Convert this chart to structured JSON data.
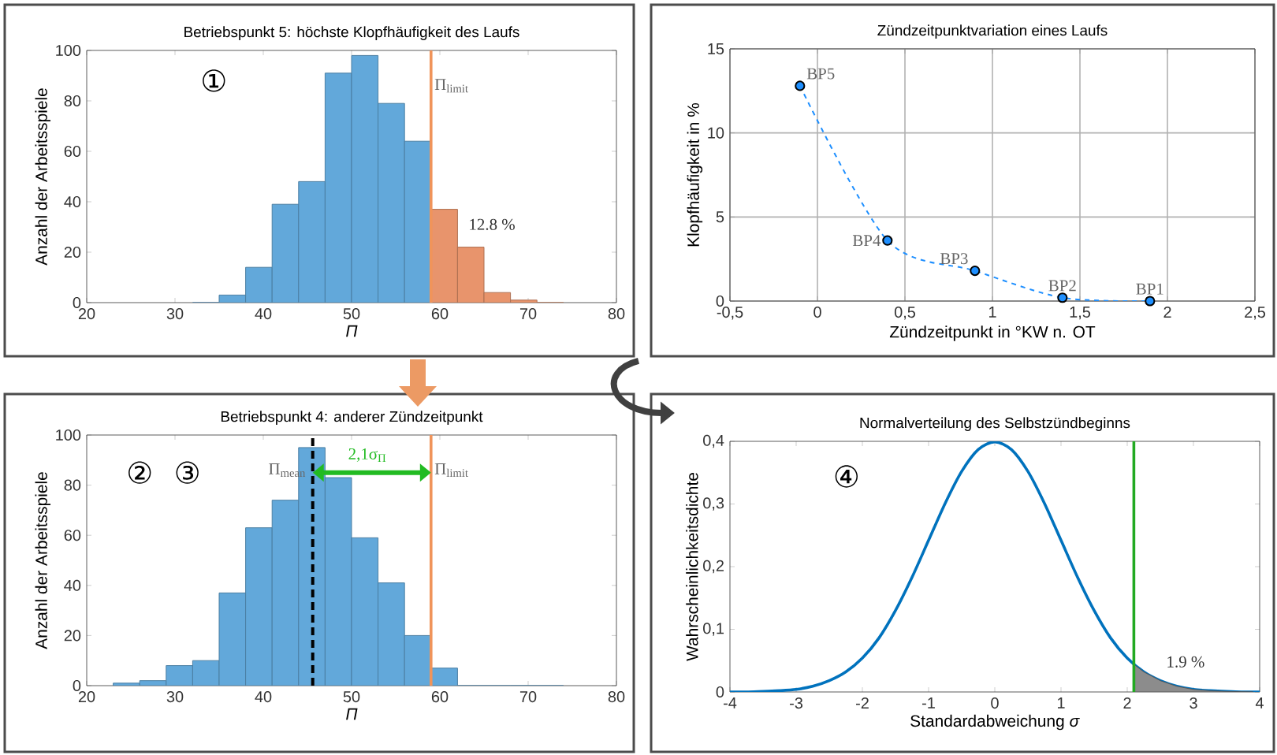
{
  "chart_data": [
    {
      "type": "histogram",
      "title": "Betriebspunkt 5: höchste Klopfhäufigkeit des Laufs",
      "xlabel": "*Π*",
      "ylabel": "Anzahl der Arbeitsspiele",
      "bins": [
        32,
        35,
        38,
        41,
        44,
        47,
        50,
        53,
        56,
        59,
        62,
        65,
        68,
        71,
        74
      ],
      "values": [
        0,
        3,
        14,
        39,
        48,
        91,
        98,
        79,
        64,
        37,
        22,
        4,
        1,
        0
      ],
      "colors": [
        "#62a8da",
        "#62a8da",
        "#62a8da",
        "#62a8da",
        "#62a8da",
        "#62a8da",
        "#62a8da",
        "#62a8da",
        "#62a8da",
        "#e8946c",
        "#e8946c",
        "#e8946c",
        "#e8946c",
        "#e8946c"
      ],
      "xlim": [
        20,
        80
      ],
      "xticks": [
        20,
        30,
        40,
        50,
        60,
        70,
        80
      ],
      "ylim": [
        0,
        100
      ],
      "yticks": [
        0,
        20,
        40,
        60,
        80,
        100
      ],
      "ref_lines": [
        {
          "axis": "x",
          "value": 59,
          "label": "Π$_{limit}$",
          "color": "#f0945a"
        }
      ],
      "annotations": [
        "①",
        "12.8 %"
      ]
    },
    {
      "type": "line",
      "title": "Zündzeitpunktvariation eines Laufs",
      "xlabel": "Zündzeitpunkt in °KW n. OT",
      "ylabel": "Klopfhäufigkeit in %",
      "series": [
        {
          "color": "#1e8fff",
          "x": [
            -0.1,
            0.4,
            0.9,
            1.4,
            1.9
          ],
          "values": [
            12.8,
            3.6,
            1.8,
            0.2,
            0.0
          ]
        }
      ],
      "marker": "circle",
      "line_style": "dashed",
      "grid": true,
      "xlim": [
        -0.5,
        2.5
      ],
      "xticks": [
        {
          "value": -0.5,
          "label": "-0,5"
        },
        0,
        {
          "value": 0.5,
          "label": "0,5"
        },
        1,
        {
          "value": 1.5,
          "label": "1,5"
        },
        2,
        {
          "value": 2.5,
          "label": "2,5"
        }
      ],
      "ylim": [
        0,
        15
      ],
      "yticks": [
        0,
        5,
        10,
        15
      ],
      "annotations": [
        {
          "text": "BP5",
          "x": -0.1,
          "y": 12.8
        },
        {
          "text": "BP4",
          "x": 0.4,
          "y": 3.6
        },
        {
          "text": "BP3",
          "x": 0.9,
          "y": 1.8
        },
        {
          "text": "BP2",
          "x": 1.4,
          "y": 0.2
        },
        {
          "text": "BP1",
          "x": 1.9,
          "y": 0.0
        }
      ]
    },
    {
      "type": "histogram",
      "title": "Betriebspunkt 4: anderer Zündzeitpunkt",
      "xlabel": "*Π*",
      "ylabel": "Anzahl der Arbeitsspiele",
      "bins": [
        23,
        26,
        29,
        32,
        35,
        38,
        41,
        44,
        47,
        50,
        53,
        56,
        59,
        62,
        65,
        68,
        71,
        74
      ],
      "values": [
        1,
        2,
        8,
        10,
        37,
        63,
        74,
        95,
        83,
        59,
        41,
        20,
        7,
        0,
        0,
        0,
        0
      ],
      "color": "#62a8da",
      "xlim": [
        20,
        80
      ],
      "xticks": [
        20,
        30,
        40,
        50,
        60,
        70,
        80
      ],
      "ylim": [
        0,
        100
      ],
      "yticks": [
        0,
        20,
        40,
        60,
        80,
        100
      ],
      "ref_lines": [
        {
          "axis": "x",
          "value": 45.6,
          "label": "Π$_{mean}$",
          "color": "#000000",
          "line_style": "dashed"
        },
        {
          "axis": "x",
          "value": 59,
          "label": "Π$_{limit}$",
          "color": "#f0945a"
        }
      ],
      "annotations": [
        "②",
        "③",
        "2,1σ$_{Π}$"
      ]
    },
    {
      "type": "line",
      "title": "Normalverteilung des Selbstzündbeginns",
      "xlabel": "Standardabweichung *σ*",
      "ylabel": "Wahrscheinlichkeitsdichte",
      "series": [
        {
          "color": "#0072bd",
          "x": [
            -4,
            -3.75,
            -3.5,
            -3.25,
            -3,
            -2.75,
            -2.5,
            -2.25,
            -2,
            -1.75,
            -1.5,
            -1.25,
            -1,
            -0.75,
            -0.5,
            -0.25,
            0,
            0.25,
            0.5,
            0.75,
            1,
            1.25,
            1.5,
            1.75,
            2,
            2.25,
            2.5,
            2.75,
            3,
            3.25,
            3.5,
            3.75,
            4
          ],
          "values": [
            0.0,
            0.0,
            0.001,
            0.002,
            0.004,
            0.009,
            0.018,
            0.032,
            0.054,
            0.086,
            0.13,
            0.183,
            0.242,
            0.301,
            0.352,
            0.387,
            0.399,
            0.387,
            0.352,
            0.301,
            0.242,
            0.183,
            0.13,
            0.086,
            0.054,
            0.032,
            0.018,
            0.009,
            0.004,
            0.002,
            0.001,
            0.0,
            0.0
          ]
        },
        {
          "type": "area",
          "color": "#8c8c8c",
          "x": [
            2.1,
            2.25,
            2.5,
            2.75,
            3,
            3.25,
            3.5,
            3.9
          ],
          "values": [
            0.044,
            0.032,
            0.018,
            0.009,
            0.004,
            0.002,
            0.001,
            0.0
          ]
        }
      ],
      "xlim": [
        -4,
        4
      ],
      "xticks": [
        -4,
        -3,
        -2,
        -1,
        0,
        1,
        2,
        3,
        4
      ],
      "ylim": [
        0,
        0.4
      ],
      "yticks": [
        0,
        {
          "value": 0.1,
          "label": "0,1"
        },
        {
          "value": 0.2,
          "label": "0,2"
        },
        {
          "value": 0.3,
          "label": "0,3"
        },
        {
          "value": 0.4,
          "label": "0,4"
        }
      ],
      "ref_lines": [
        {
          "axis": "x",
          "value": 2.1,
          "color": "#22aa22"
        }
      ],
      "annotations": [
        "④",
        "1.9 %"
      ]
    }
  ]
}
